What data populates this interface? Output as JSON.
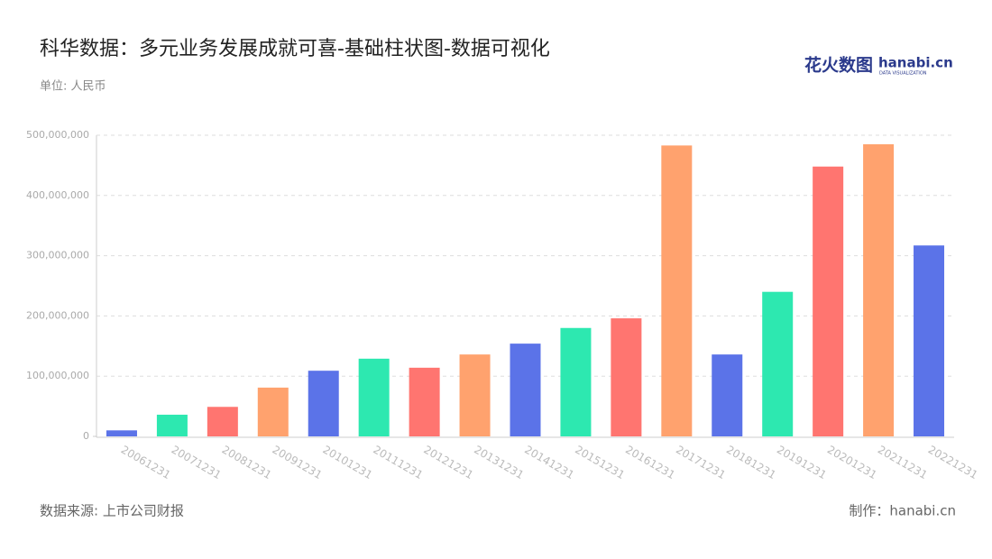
{
  "chart_data": {
    "type": "bar",
    "title": "科华数据：多元业务发展成就可喜-基础柱状图-数据可视化",
    "subtitle": "单位: 人民币",
    "source": "数据来源: 上市公司财报",
    "credit": "制作：hanabi.cn",
    "logo": {
      "name": "花火数图",
      "site": "hanabi.cn",
      "tagline": "DATA VISUALIZATION"
    },
    "categories": [
      "20061231",
      "20071231",
      "20081231",
      "20091231",
      "20101231",
      "20111231",
      "20121231",
      "20131231",
      "20141231",
      "20151231",
      "20161231",
      "20171231",
      "20181231",
      "20191231",
      "20201231",
      "20211231",
      "20221231"
    ],
    "values": [
      10000000,
      36000000,
      49000000,
      81000000,
      109000000,
      129000000,
      114000000,
      136000000,
      154000000,
      180000000,
      196000000,
      483000000,
      136000000,
      240000000,
      448000000,
      485000000,
      317000000
    ],
    "colors": [
      "#5b73e8",
      "#2de8b0",
      "#ff7570",
      "#ffa26e",
      "#5b73e8",
      "#2de8b0",
      "#ff7570",
      "#ffa26e",
      "#5b73e8",
      "#2de8b0",
      "#ff7570",
      "#ffa26e",
      "#5b73e8",
      "#2de8b0",
      "#ff7570",
      "#ffa26e",
      "#5b73e8"
    ],
    "ylim": [
      0,
      500000000
    ],
    "yticks": [
      0,
      {
        "value": 100000000,
        "label": "100,000,000"
      },
      {
        "value": 200000000,
        "label": "200,000,000"
      },
      {
        "value": 300000000,
        "label": "300,000,000"
      },
      {
        "value": 400000000,
        "label": "400,000,000"
      },
      {
        "value": 500000000,
        "label": "500,000,000"
      }
    ],
    "grid": true
  }
}
